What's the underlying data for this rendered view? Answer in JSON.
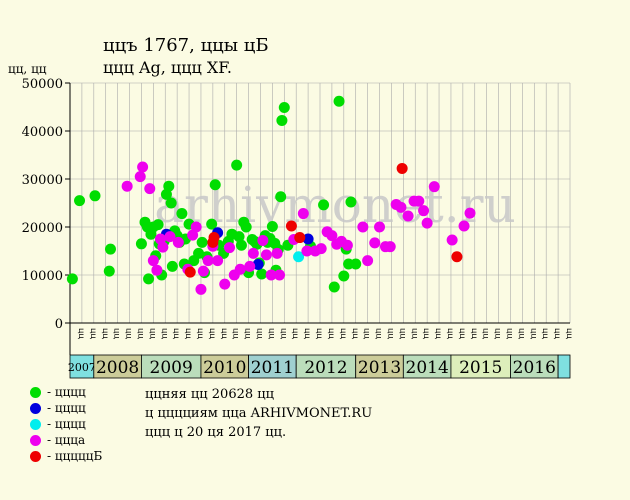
{
  "title_line1": "ццъ 1767, ццы цБ",
  "title_line2": "ццц Ag, ццц XF.",
  "y_axis_label": "цц, цц",
  "watermark": "arhivmonet.ru",
  "legend": [
    {
      "label": "- цццц",
      "color": "#00dd00"
    },
    {
      "label": "- цццц",
      "color": "#0000dd"
    },
    {
      "label": "- цццц",
      "color": "#00eeee"
    },
    {
      "label": "- ццца",
      "color": "#ee00ee"
    },
    {
      "label": "- цццццБ",
      "color": "#ee0000"
    }
  ],
  "notes": [
    "ццняя цц 20628 цц",
    "ц цццциям цца ARHIVMONET.RU",
    "ццц ц 20 ця 2017 цц."
  ],
  "colors": {
    "background": "#fbfbe3",
    "plot_bg": "#fbfbe3",
    "grid": "#aaaaaa"
  },
  "chart_data": {
    "type": "scatter",
    "ylim": [
      0,
      50000
    ],
    "yticks": [
      0,
      10000,
      20000,
      30000,
      40000,
      50000
    ],
    "ytick_labels": [
      "0",
      "10000",
      "20000",
      "30000",
      "40000",
      "50000"
    ],
    "x_slots": 42,
    "x_slot_labels": [
      "цц",
      "цц",
      "цц",
      "цц",
      "цц",
      "цц",
      "цц",
      "цц",
      "цц",
      "цц",
      "цц",
      "цц",
      "цц",
      "цц",
      "цц",
      "цц",
      "цц",
      "цц",
      "цц",
      "цц",
      "цц",
      "цц",
      "цц",
      "цц",
      "цц",
      "цц",
      "цц",
      "цц",
      "цц",
      "цц",
      "цц",
      "цц",
      "цц",
      "цц",
      "цц",
      "цц",
      "цц",
      "цц",
      "цц",
      "цц",
      "цц",
      "цц"
    ],
    "years": [
      {
        "label": "2007",
        "start": 0,
        "end": 2,
        "color": "#7fe0e0"
      },
      {
        "label": "2008",
        "start": 2,
        "end": 6,
        "color": "#cccc99"
      },
      {
        "label": "2009",
        "start": 6,
        "end": 11,
        "color": "#bbddbb"
      },
      {
        "label": "2010",
        "start": 11,
        "end": 15,
        "color": "#cccc99"
      },
      {
        "label": "2011",
        "start": 15,
        "end": 19,
        "color": "#9fd0d0"
      },
      {
        "label": "2012",
        "start": 19,
        "end": 24,
        "color": "#bbddbb"
      },
      {
        "label": "2013",
        "start": 24,
        "end": 28,
        "color": "#cccc99"
      },
      {
        "label": "2014",
        "start": 28,
        "end": 32,
        "color": "#bbddbb"
      },
      {
        "label": "2015",
        "start": 32,
        "end": 37,
        "color": "#ddeebb"
      },
      {
        "label": "2016",
        "start": 37,
        "end": 41,
        "color": "#bbddbb"
      },
      {
        "label": "",
        "start": 41,
        "end": 42,
        "color": "#7fe0e0"
      }
    ],
    "series": [
      {
        "name": "цццц",
        "color": "#00dd00",
        "points": [
          [
            0.2,
            9200
          ],
          [
            0.8,
            25500
          ],
          [
            2.1,
            26500
          ],
          [
            3.3,
            10800
          ],
          [
            3.4,
            15400
          ],
          [
            6.0,
            16500
          ],
          [
            6.3,
            21000
          ],
          [
            6.5,
            20000
          ],
          [
            6.6,
            9200
          ],
          [
            6.8,
            18500
          ],
          [
            7.0,
            20000
          ],
          [
            7.2,
            14000
          ],
          [
            7.4,
            20500
          ],
          [
            7.5,
            16500
          ],
          [
            7.7,
            10000
          ],
          [
            7.9,
            17000
          ],
          [
            8.1,
            26800
          ],
          [
            8.3,
            28500
          ],
          [
            8.5,
            25000
          ],
          [
            8.6,
            11800
          ],
          [
            8.8,
            19200
          ],
          [
            9.0,
            18200
          ],
          [
            9.2,
            16800
          ],
          [
            9.4,
            22800
          ],
          [
            9.6,
            12300
          ],
          [
            9.7,
            17500
          ],
          [
            10.0,
            20600
          ],
          [
            10.4,
            13000
          ],
          [
            10.8,
            14500
          ],
          [
            11.1,
            16800
          ],
          [
            11.3,
            10500
          ],
          [
            11.5,
            13800
          ],
          [
            11.9,
            20600
          ],
          [
            12.2,
            28800
          ],
          [
            12.5,
            16200
          ],
          [
            12.9,
            14500
          ],
          [
            13.3,
            17000
          ],
          [
            13.6,
            18500
          ],
          [
            14.0,
            32900
          ],
          [
            14.2,
            18000
          ],
          [
            14.4,
            16200
          ],
          [
            14.6,
            21000
          ],
          [
            14.8,
            20000
          ],
          [
            15.0,
            10500
          ],
          [
            15.3,
            17400
          ],
          [
            15.5,
            17000
          ],
          [
            15.7,
            16400
          ],
          [
            15.9,
            12500
          ],
          [
            16.1,
            10200
          ],
          [
            16.4,
            18200
          ],
          [
            16.6,
            16800
          ],
          [
            16.8,
            17600
          ],
          [
            17.0,
            20100
          ],
          [
            17.2,
            16600
          ],
          [
            17.3,
            11000
          ],
          [
            17.5,
            15300
          ],
          [
            17.7,
            26300
          ],
          [
            17.8,
            42200
          ],
          [
            18.0,
            44900
          ],
          [
            18.3,
            16200
          ],
          [
            20.2,
            16000
          ],
          [
            21.3,
            24600
          ],
          [
            22.2,
            7500
          ],
          [
            22.6,
            46200
          ],
          [
            23.0,
            9800
          ],
          [
            23.2,
            15400
          ],
          [
            23.4,
            12300
          ],
          [
            23.6,
            25200
          ],
          [
            24.0,
            12300
          ]
        ]
      },
      {
        "name": "цццц",
        "color": "#0000dd",
        "points": [
          [
            8.1,
            18500
          ],
          [
            12.4,
            18800
          ],
          [
            15.8,
            12200
          ],
          [
            20.0,
            17500
          ]
        ]
      },
      {
        "name": "цццц",
        "color": "#00eeee",
        "points": [
          [
            19.2,
            13800
          ]
        ]
      },
      {
        "name": "ццца",
        "color": "#ee00ee",
        "points": [
          [
            4.8,
            28500
          ],
          [
            5.9,
            30500
          ],
          [
            6.1,
            32500
          ],
          [
            6.7,
            28000
          ],
          [
            7.0,
            13000
          ],
          [
            7.3,
            11000
          ],
          [
            7.6,
            17500
          ],
          [
            7.8,
            15800
          ],
          [
            8.4,
            18000
          ],
          [
            9.1,
            16800
          ],
          [
            9.9,
            11200
          ],
          [
            10.3,
            18300
          ],
          [
            10.6,
            20000
          ],
          [
            11.0,
            7000
          ],
          [
            11.2,
            10800
          ],
          [
            11.6,
            13000
          ],
          [
            12.0,
            16000
          ],
          [
            12.4,
            13000
          ],
          [
            13.0,
            8100
          ],
          [
            13.4,
            15700
          ],
          [
            13.8,
            10000
          ],
          [
            14.3,
            11200
          ],
          [
            15.1,
            11800
          ],
          [
            15.4,
            14500
          ],
          [
            16.2,
            17200
          ],
          [
            16.5,
            14200
          ],
          [
            16.9,
            10000
          ],
          [
            17.4,
            14500
          ],
          [
            17.6,
            10000
          ],
          [
            18.8,
            17400
          ],
          [
            19.6,
            22800
          ],
          [
            19.9,
            15000
          ],
          [
            20.6,
            15000
          ],
          [
            21.1,
            15500
          ],
          [
            21.6,
            19000
          ],
          [
            22.0,
            18200
          ],
          [
            22.4,
            16400
          ],
          [
            22.8,
            17000
          ],
          [
            23.3,
            16200
          ],
          [
            24.6,
            20000
          ],
          [
            25.0,
            13000
          ],
          [
            25.6,
            16700
          ],
          [
            26.0,
            20000
          ],
          [
            26.5,
            15900
          ],
          [
            26.9,
            15900
          ],
          [
            27.4,
            24700
          ],
          [
            27.8,
            24100
          ],
          [
            28.4,
            22300
          ],
          [
            28.9,
            25400
          ],
          [
            29.3,
            25400
          ],
          [
            29.7,
            23400
          ],
          [
            30.0,
            20800
          ],
          [
            30.6,
            28400
          ],
          [
            32.1,
            17300
          ],
          [
            33.1,
            20200
          ],
          [
            33.6,
            22900
          ]
        ]
      },
      {
        "name": "цццццБ",
        "color": "#ee0000",
        "points": [
          [
            10.1,
            10600
          ],
          [
            12.0,
            16800
          ],
          [
            12.1,
            17800
          ],
          [
            18.6,
            20200
          ],
          [
            19.3,
            17800
          ],
          [
            27.9,
            32200
          ],
          [
            32.5,
            13800
          ]
        ]
      }
    ]
  }
}
